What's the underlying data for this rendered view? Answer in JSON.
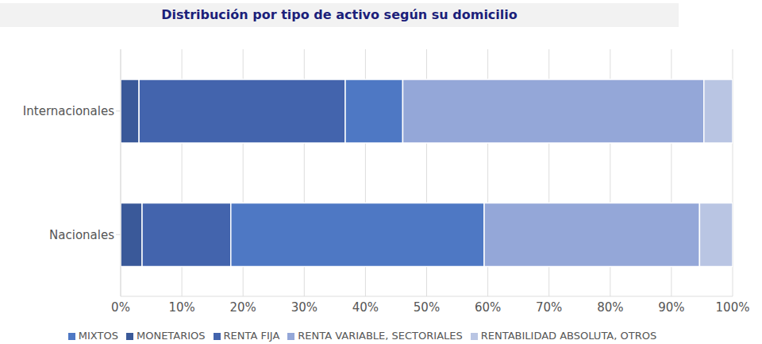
{
  "chart_data": {
    "type": "bar",
    "title": "Distribución por tipo de activo según su domicilio",
    "orientation": "horizontal",
    "stacked": true,
    "grid": true,
    "legend": "bottom",
    "categories": [
      "Internacionales",
      "Nacionales"
    ],
    "series": [
      {
        "name": "MONETARIOS",
        "color": "#3a5999",
        "values": [
          3,
          3.5
        ]
      },
      {
        "name": "RENTA FIJA",
        "color": "#4364ad",
        "values": [
          33.7,
          14.5
        ]
      },
      {
        "name": "MIXTOS",
        "color": "#4e78c4",
        "values": [
          9.4,
          41.4
        ]
      },
      {
        "name": "RENTA VARIABLE, SECTORIALES",
        "color": "#94a7d8",
        "values": [
          49.2,
          35.2
        ]
      },
      {
        "name": "RENTABILIDAD ABSOLUTA, OTROS",
        "color": "#b9c5e3",
        "values": [
          4.7,
          5.4
        ]
      }
    ],
    "xlim": [
      0,
      100
    ],
    "xticks": [
      {
        "value": 0,
        "label": "0%"
      },
      {
        "value": 10,
        "label": "10%"
      },
      {
        "value": 20,
        "label": "20%"
      },
      {
        "value": 30,
        "label": "30%"
      },
      {
        "value": 40,
        "label": "40%"
      },
      {
        "value": 50,
        "label": "50%"
      },
      {
        "value": 60,
        "label": "60%"
      },
      {
        "value": 70,
        "label": "70%"
      },
      {
        "value": 80,
        "label": "80%"
      },
      {
        "value": 90,
        "label": "90%"
      },
      {
        "value": 100,
        "label": "100%"
      }
    ]
  }
}
